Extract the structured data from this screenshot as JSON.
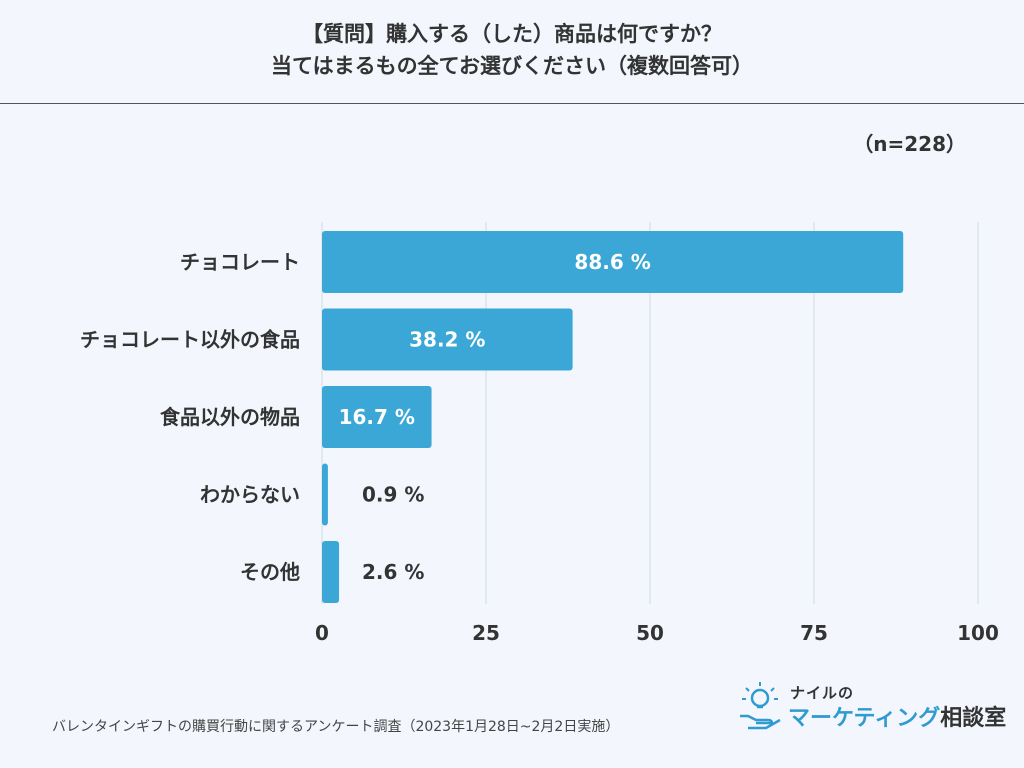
{
  "title": {
    "line1": "【質問】購入する（した）商品は何ですか？",
    "line2": "当てはまるもの全てお選びください（複数回答可）"
  },
  "sample_size": "（n=228）",
  "footer": "バレンタインギフトの購買行動に関するアンケート調査（2023年1月28日~2月2日実施）",
  "logo": {
    "sub": "ナイルの",
    "main_accent": "マーケティング",
    "main_rest": "相談室"
  },
  "colors": {
    "bar": "#3aa7d6",
    "grid": "#dde3ec",
    "text": "#333333",
    "background": "#f3f7fd"
  },
  "chart_data": {
    "type": "bar",
    "orientation": "horizontal",
    "categories": [
      "チョコレート",
      "チョコレート以外の食品",
      "食品以外の物品",
      "わからない",
      "その他"
    ],
    "values": [
      88.6,
      38.2,
      16.7,
      0.9,
      2.6
    ],
    "value_labels": [
      "88.6 %",
      "38.2 %",
      "16.7 %",
      "0.9 %",
      "2.6 %"
    ],
    "xlim": [
      0,
      100
    ],
    "xticks": [
      0,
      25,
      50,
      75,
      100
    ],
    "xtick_labels": [
      "0",
      "25",
      "50",
      "75",
      "100"
    ],
    "grid": true,
    "legend": "none"
  }
}
